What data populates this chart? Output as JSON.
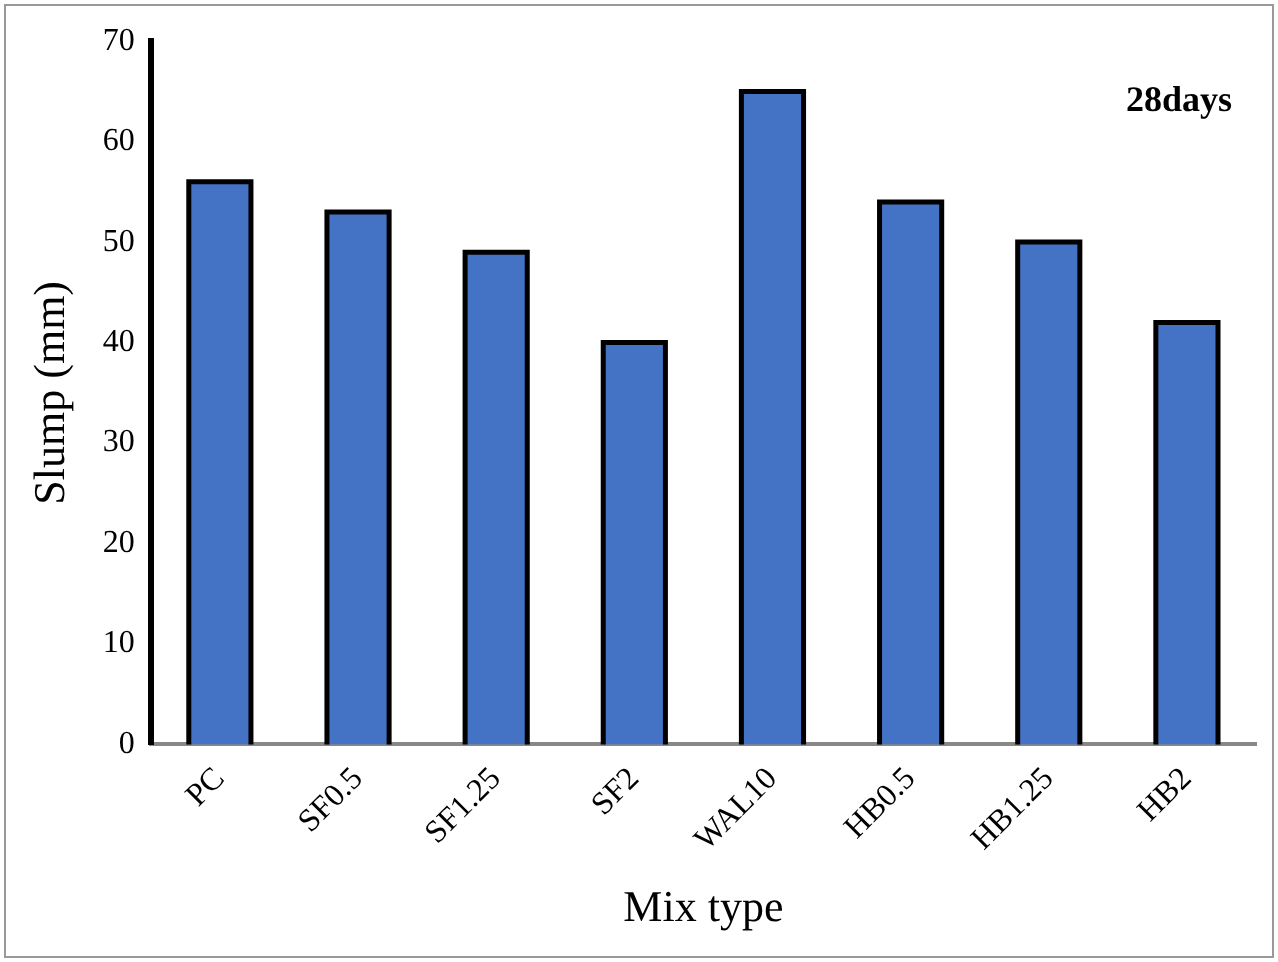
{
  "chart_data": {
    "type": "bar",
    "xlabel": "Mix type",
    "ylabel": "Slump (mm)",
    "annotations": [
      "28days"
    ],
    "categories": [
      "PC",
      "SF0.5",
      "SF1.25",
      "SF2",
      "WAL10",
      "HB0.5",
      "HB1.25",
      "HB2"
    ],
    "values": [
      56,
      53,
      49,
      40,
      65,
      54,
      50,
      42
    ],
    "color": "#4472c4",
    "ylim": [
      0,
      70
    ],
    "yticks": [
      0,
      10,
      20,
      30,
      40,
      50,
      60,
      70
    ],
    "grid": false,
    "legend": false
  }
}
